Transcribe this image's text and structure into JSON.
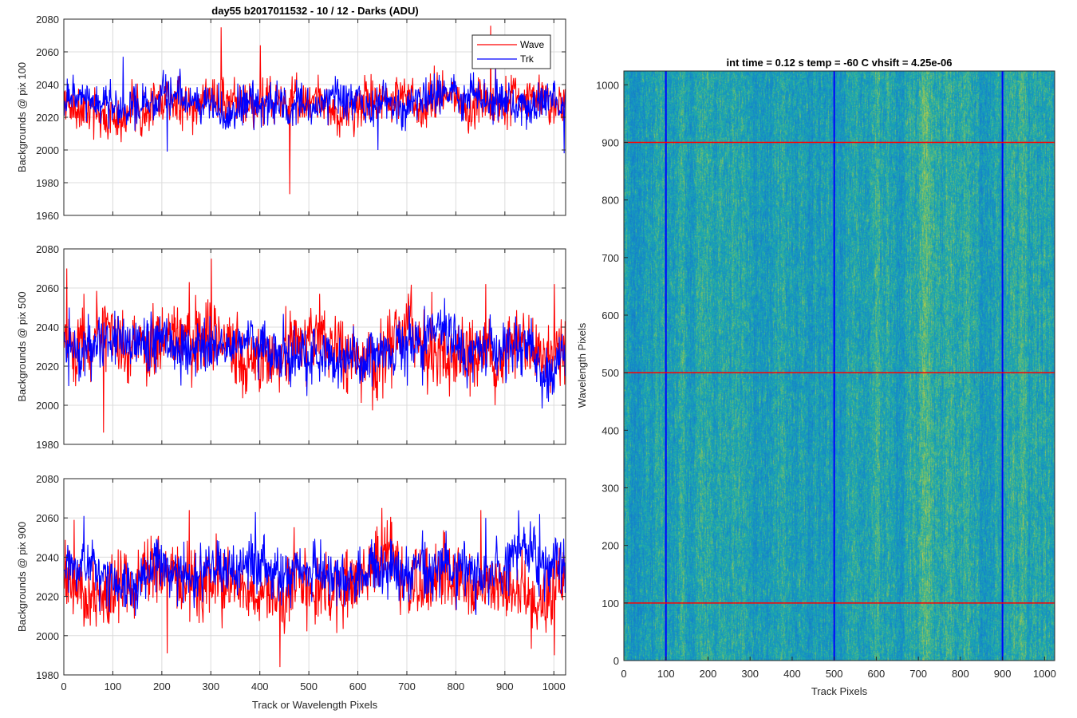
{
  "figure": {
    "title": "day55 b2017011532 - 10 / 12 - Darks (ADU)"
  },
  "chart_data": [
    {
      "type": "line",
      "ylabel": "Backgrounds @ pix 100",
      "xlabel": "",
      "xlim": [
        0,
        1024
      ],
      "ylim": [
        1960,
        2080
      ],
      "xticks": [
        0,
        100,
        200,
        300,
        400,
        500,
        600,
        700,
        800,
        900,
        1000
      ],
      "yticks": [
        1960,
        1980,
        2000,
        2020,
        2040,
        2060,
        2080
      ],
      "grid": true,
      "legend": {
        "placement": "top-right",
        "entries": [
          "Wave",
          "Trk"
        ]
      },
      "series": [
        {
          "name": "Wave",
          "color": "#ff0000",
          "mean": 2029,
          "noise": 7,
          "seed": 11,
          "spikes": [
            [
              320,
              2075
            ],
            [
              400,
              2064
            ],
            [
              460,
              1973
            ],
            [
              870,
              2076
            ],
            [
              210,
              2040
            ],
            [
              880,
              2060
            ]
          ]
        },
        {
          "name": "Trk",
          "color": "#0000ff",
          "mean": 2029,
          "noise": 6,
          "seed": 23,
          "spikes": [
            [
              120,
              2057
            ],
            [
              210,
              1999
            ],
            [
              1020,
              1998
            ],
            [
              640,
              2000
            ],
            [
              880,
              2050
            ]
          ]
        }
      ]
    },
    {
      "type": "line",
      "ylabel": "Backgrounds @ pix 500",
      "xlabel": "",
      "xlim": [
        0,
        1024
      ],
      "ylim": [
        1980,
        2080
      ],
      "xticks": [
        0,
        100,
        200,
        300,
        400,
        500,
        600,
        700,
        800,
        900,
        1000
      ],
      "yticks": [
        1980,
        2000,
        2020,
        2040,
        2060,
        2080
      ],
      "grid": true,
      "series": [
        {
          "name": "Wave",
          "color": "#ff0000",
          "mean": 2030,
          "noise": 9,
          "seed": 37,
          "spikes": [
            [
              5,
              2070
            ],
            [
              80,
              1986
            ],
            [
              300,
              2075
            ],
            [
              255,
              2063
            ],
            [
              860,
              2062
            ],
            [
              1000,
              2062
            ],
            [
              750,
              2058
            ]
          ]
        },
        {
          "name": "Trk",
          "color": "#0000ff",
          "mean": 2030,
          "noise": 7,
          "seed": 41,
          "spikes": [
            [
              10,
              2050
            ],
            [
              700,
              2010
            ],
            [
              860,
              2015
            ]
          ]
        }
      ]
    },
    {
      "type": "line",
      "ylabel": "Backgrounds @ pix 900",
      "xlabel": "Track or Wavelength Pixels",
      "xlim": [
        0,
        1024
      ],
      "ylim": [
        1980,
        2080
      ],
      "xticks": [
        0,
        100,
        200,
        300,
        400,
        500,
        600,
        700,
        800,
        900,
        1000
      ],
      "yticks": [
        1980,
        2000,
        2020,
        2040,
        2060,
        2080
      ],
      "grid": true,
      "series": [
        {
          "name": "Wave",
          "color": "#ff0000",
          "mean": 2027,
          "noise": 9,
          "seed": 53,
          "spikes": [
            [
              210,
              1991
            ],
            [
              255,
              2064
            ],
            [
              440,
              1984
            ],
            [
              1000,
              1990
            ],
            [
              850,
              2064
            ],
            [
              20,
              2059
            ]
          ]
        },
        {
          "name": "Trk",
          "color": "#0000ff",
          "mean": 2034,
          "noise": 7,
          "seed": 67,
          "spikes": [
            [
              40,
              2061
            ],
            [
              390,
              2063
            ],
            [
              860,
              2060
            ],
            [
              970,
              2062
            ]
          ]
        }
      ]
    },
    {
      "type": "heatmap",
      "title": "int time = 0.12 s    temp = -60 C    vhsift = 4.25e-06",
      "xlabel": "Track Pixels",
      "ylabel": "Wavelength Pixels",
      "xlim": [
        0,
        1024
      ],
      "ylim": [
        0,
        1024
      ],
      "xticks": [
        0,
        100,
        200,
        300,
        400,
        500,
        600,
        700,
        800,
        900,
        1000
      ],
      "yticks": [
        0,
        100,
        200,
        300,
        400,
        500,
        600,
        700,
        800,
        900,
        1000
      ],
      "colormap": "parula",
      "vertical_lines": {
        "color": "#0000ff",
        "x": [
          100,
          500,
          900
        ]
      },
      "horizontal_lines": {
        "color": "#ff0000",
        "y": [
          100,
          500,
          900
        ]
      }
    }
  ]
}
